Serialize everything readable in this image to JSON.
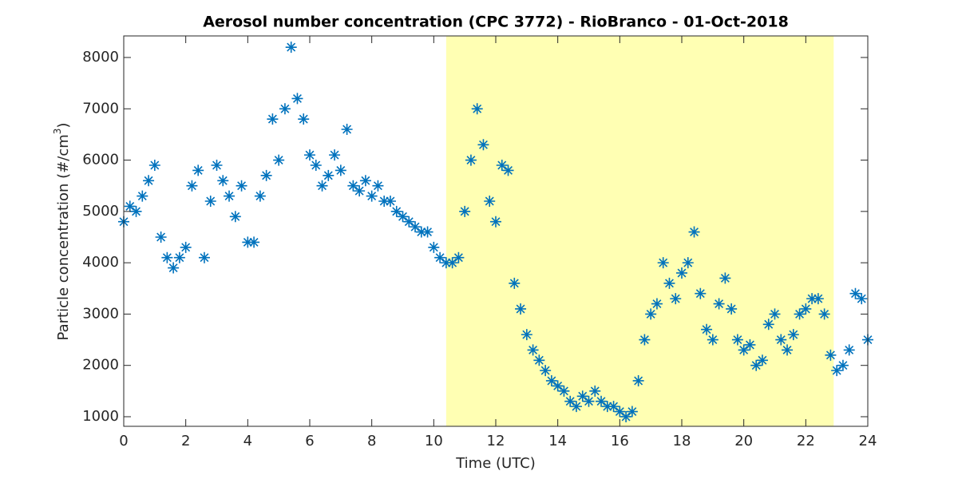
{
  "chart_data": {
    "type": "scatter",
    "title": "Aerosol number concentration (CPC 3772) - RioBranco - 01-Oct-2018",
    "xlabel": "Time (UTC)",
    "ylabel": [
      "Particle concentration (#/cm",
      "3",
      ")"
    ],
    "marker": "asterisk",
    "shade": {
      "x": [
        10.4,
        22.9
      ],
      "color": "#ffffb3"
    },
    "xlim": [
      0,
      24
    ],
    "xticks": [
      0,
      2,
      4,
      6,
      8,
      10,
      12,
      14,
      16,
      18,
      20,
      22,
      24
    ],
    "ylim": [
      813,
      8420
    ],
    "yticks": [
      1000,
      2000,
      3000,
      4000,
      5000,
      6000,
      7000,
      8000
    ],
    "series": [
      {
        "name": "CPC",
        "color": "#0072bd",
        "x": [
          0,
          0.2,
          0.4,
          0.6,
          0.8,
          1,
          1.2,
          1.4,
          1.6,
          1.8,
          2,
          2.2,
          2.4,
          2.6,
          2.8,
          3,
          3.2,
          3.4,
          3.6,
          3.8,
          4,
          4.2,
          4.4,
          4.6,
          4.8,
          5,
          5.2,
          5.4,
          5.6,
          5.8,
          6,
          6.2,
          6.4,
          6.6,
          6.8,
          7,
          7.2,
          7.4,
          7.6,
          7.8,
          8,
          8.2,
          8.4,
          8.6,
          8.8,
          9,
          9.2,
          9.4,
          9.6,
          9.8,
          10,
          10.2,
          10.4,
          10.6,
          10.8,
          11,
          11.2,
          11.4,
          11.6,
          11.8,
          12,
          12.2,
          12.4,
          12.6,
          12.8,
          13,
          13.2,
          13.4,
          13.6,
          13.8,
          14,
          14.2,
          14.4,
          14.6,
          14.8,
          15,
          15.2,
          15.4,
          15.6,
          15.8,
          16,
          16.2,
          16.4,
          16.6,
          16.8,
          17,
          17.2,
          17.4,
          17.6,
          17.8,
          18,
          18.2,
          18.4,
          18.6,
          18.8,
          19,
          19.2,
          19.4,
          19.6,
          19.8,
          20,
          20.2,
          20.4,
          20.6,
          20.8,
          21,
          21.2,
          21.4,
          21.6,
          21.8,
          22,
          22.2,
          22.4,
          22.6,
          22.8,
          23,
          23.2,
          23.4,
          23.6,
          23.8,
          24
        ],
        "values": [
          4800,
          5100,
          5000,
          5300,
          5600,
          5900,
          4500,
          4100,
          3900,
          4100,
          4300,
          5500,
          5800,
          4100,
          5200,
          5900,
          5600,
          5300,
          4900,
          5500,
          4400,
          4400,
          5300,
          5700,
          6800,
          6000,
          7000,
          8200,
          7200,
          6800,
          6100,
          5900,
          5500,
          5700,
          6100,
          5800,
          6600,
          5500,
          5400,
          5600,
          5300,
          5500,
          5200,
          5200,
          5000,
          4900,
          4800,
          4700,
          4600,
          4600,
          4300,
          4100,
          4000,
          4000,
          4100,
          5000,
          6000,
          7000,
          6300,
          5200,
          4800,
          5900,
          5800,
          3600,
          3100,
          2600,
          2300,
          2100,
          1900,
          1700,
          1600,
          1500,
          1300,
          1200,
          1400,
          1300,
          1500,
          1300,
          1200,
          1200,
          1100,
          1000,
          1100,
          1700,
          2500,
          3000,
          3200,
          4000,
          3600,
          3300,
          3800,
          4000,
          4600,
          3400,
          2700,
          2500,
          3200,
          3700,
          3100,
          2500,
          2300,
          2400,
          2000,
          2100,
          2800,
          3000,
          2500,
          2300,
          2600,
          3000,
          3100,
          3300,
          3300,
          3000,
          2200,
          1900,
          2000,
          2300,
          3400,
          3300,
          2500
        ]
      }
    ]
  }
}
